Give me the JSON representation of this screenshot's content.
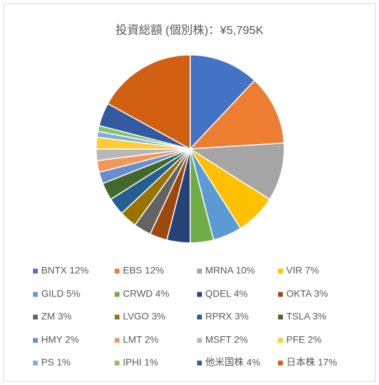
{
  "chart_data": {
    "type": "pie",
    "title": "投資総額 (個別株)：¥5,795K",
    "categories": [
      "BNTX 12%",
      "EBS 12%",
      "MRNA 10%",
      "VIR 7%",
      "GILD 5%",
      "CRWD 4%",
      "QDEL 4%",
      "OKTA 3%",
      "ZM 3%",
      "LVGO 3%",
      "RPRX 3%",
      "TSLA 3%",
      "HMY 2%",
      "LMT 2%",
      "MSFT 2%",
      "PFE 2%",
      "PS 1%",
      "IPHI 1%",
      "他米国株 4%",
      "日本株 17%"
    ],
    "values": [
      12,
      12,
      10,
      7,
      5,
      4,
      4,
      3,
      3,
      3,
      3,
      3,
      2,
      2,
      2,
      2,
      1,
      1,
      4,
      17
    ],
    "colors": [
      "#4472c4",
      "#ed7d31",
      "#a5a5a5",
      "#ffc000",
      "#5b9bd5",
      "#70ad47",
      "#264478",
      "#9e480e",
      "#636363",
      "#997300",
      "#255e91",
      "#43682b",
      "#698ed0",
      "#f1975a",
      "#b7b7b7",
      "#ffcd33",
      "#7cafdd",
      "#8cc168",
      "#335aa1",
      "#d26012"
    ],
    "legend": "bottom"
  }
}
